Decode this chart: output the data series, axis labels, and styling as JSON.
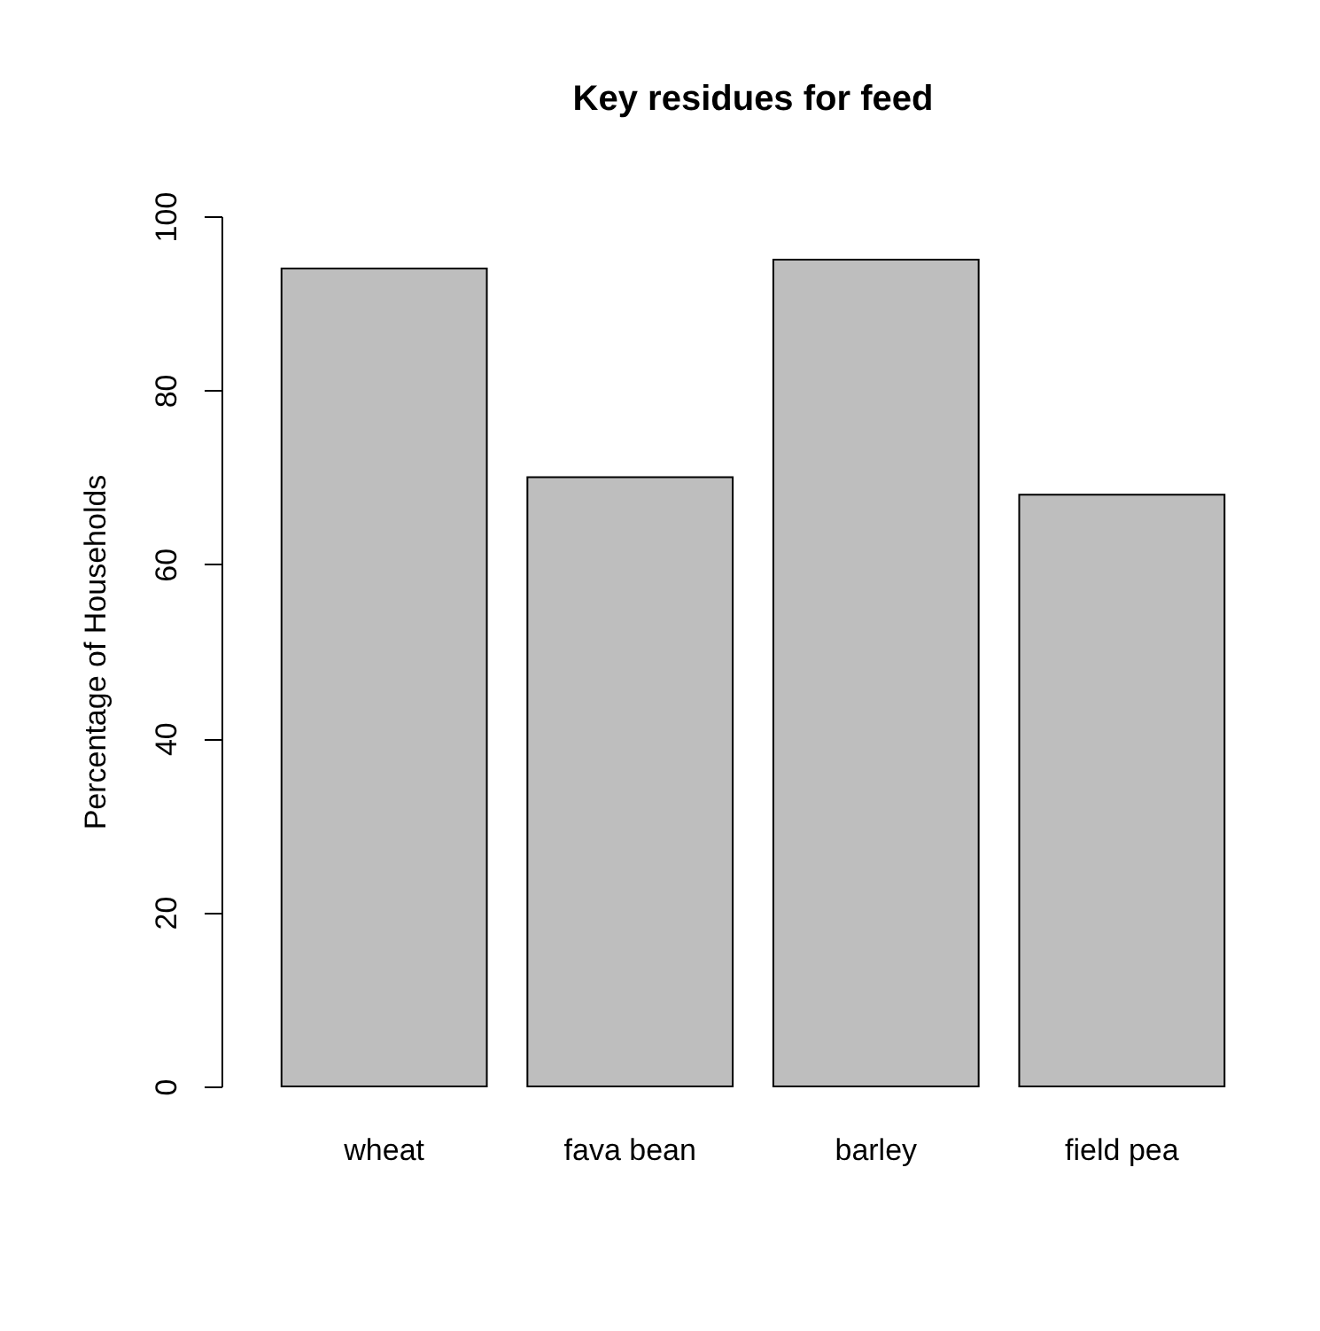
{
  "chart_data": {
    "type": "bar",
    "title": "Key residues for feed",
    "ylabel": "Percentage of Households",
    "categories": [
      "wheat",
      "fava bean",
      "barley",
      "field pea"
    ],
    "values": [
      94,
      70,
      95,
      68
    ],
    "color": "#bebebe",
    "ylim": [
      0,
      100
    ],
    "yticks": [
      0,
      20,
      40,
      60,
      80,
      100
    ],
    "grid": false
  }
}
